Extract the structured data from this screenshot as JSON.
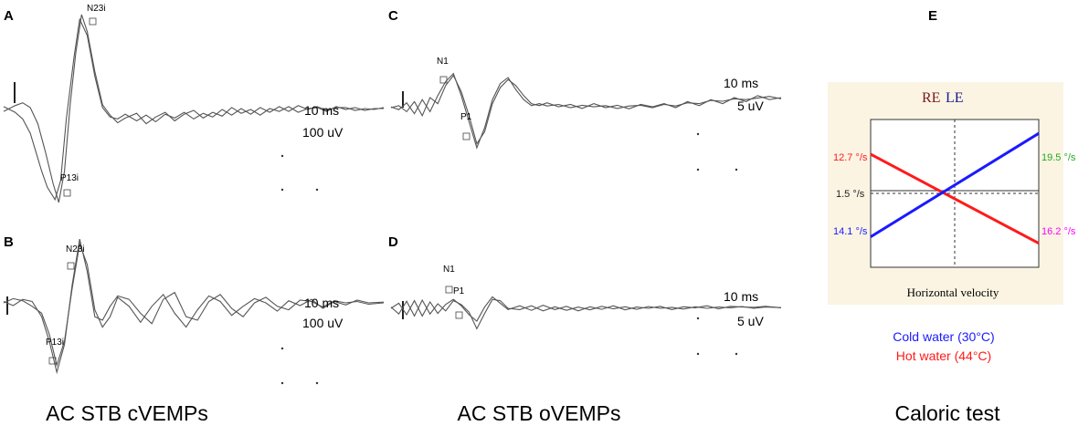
{
  "chart_data": [
    {
      "type": "line",
      "panel": "A",
      "markers": [
        {
          "name": "N23i",
          "kind": "peak"
        },
        {
          "name": "P13i",
          "kind": "trough"
        }
      ],
      "scale": {
        "time": "10 ms",
        "amplitude": "100 uV"
      },
      "series": [
        {
          "t": [
            0,
            6,
            10,
            14,
            17,
            20,
            23,
            27,
            30,
            33,
            37,
            40,
            44,
            48,
            52,
            56,
            60,
            64,
            70,
            75,
            80,
            85,
            90,
            95,
            100,
            105,
            110,
            115,
            120,
            125,
            130,
            135,
            140,
            145,
            150,
            155,
            160,
            165,
            170,
            175,
            180,
            185,
            190,
            195,
            200
          ],
          "v": [
            0.03,
            -0.03,
            -0.1,
            -0.25,
            -0.45,
            -0.65,
            -0.82,
            -0.95,
            -0.75,
            -0.1,
            0.55,
            0.95,
            0.78,
            0.35,
            0.02,
            -0.08,
            -0.1,
            -0.05,
            -0.12,
            -0.06,
            -0.13,
            -0.05,
            -0.09,
            -0.03,
            -0.1,
            -0.04,
            -0.08,
            0.0,
            -0.06,
            0.01,
            -0.05,
            0.02,
            -0.03,
            0.03,
            -0.02,
            0.04,
            0.0,
            0.03,
            -0.01,
            0.02,
            0.02,
            -0.01,
            0.01,
            0.0,
            0.02
          ]
        },
        {
          "t": [
            0,
            6,
            10,
            14,
            18,
            22,
            26,
            29,
            32,
            35,
            38,
            41,
            44,
            48,
            52,
            56,
            60,
            64,
            70,
            75,
            80,
            85,
            90,
            95,
            100,
            105,
            110,
            115,
            120,
            125,
            130,
            135,
            140,
            145,
            150,
            155,
            160,
            165,
            170,
            175,
            180,
            185,
            190,
            195,
            200
          ],
          "v": [
            -0.02,
            0.04,
            0.07,
            0.02,
            -0.15,
            -0.45,
            -0.78,
            -0.98,
            -0.65,
            0.05,
            0.6,
            1.0,
            0.82,
            0.4,
            0.05,
            -0.06,
            -0.14,
            -0.09,
            -0.04,
            -0.15,
            -0.08,
            -0.03,
            -0.12,
            -0.05,
            -0.01,
            -0.09,
            -0.03,
            -0.07,
            0.02,
            -0.04,
            0.0,
            -0.06,
            0.01,
            -0.02,
            0.03,
            -0.03,
            0.01,
            0.02,
            -0.02,
            0.03,
            0.0,
            0.02,
            -0.01,
            0.01,
            0.01
          ]
        }
      ]
    },
    {
      "type": "line",
      "panel": "B",
      "markers": [
        {
          "name": "N23i",
          "kind": "peak"
        },
        {
          "name": "P13i",
          "kind": "trough"
        }
      ],
      "scale": {
        "time": "10 ms",
        "amplitude": "100 uV"
      },
      "series": [
        {
          "t": [
            0,
            5,
            10,
            15,
            20,
            24,
            28,
            32,
            36,
            40,
            44,
            48,
            52,
            56,
            60,
            66,
            72,
            78,
            84,
            90,
            96,
            102,
            108,
            114,
            120,
            126,
            132,
            138,
            144,
            150,
            156,
            162,
            168,
            174,
            180,
            186,
            192,
            200
          ],
          "v": [
            0.0,
            0.06,
            0.03,
            -0.05,
            -0.15,
            -0.45,
            -0.9,
            -0.55,
            0.2,
            0.85,
            0.55,
            -0.1,
            -0.35,
            -0.2,
            0.08,
            -0.05,
            -0.28,
            -0.05,
            0.12,
            -0.15,
            -0.35,
            -0.1,
            0.1,
            0.02,
            -0.18,
            -0.05,
            0.06,
            0.0,
            -0.12,
            0.03,
            -0.04,
            0.05,
            -0.08,
            0.02,
            -0.03,
            0.04,
            0.0,
            0.01
          ]
        },
        {
          "t": [
            0,
            5,
            10,
            15,
            20,
            24,
            28,
            32,
            36,
            40,
            44,
            48,
            52,
            56,
            60,
            66,
            72,
            78,
            84,
            90,
            96,
            102,
            108,
            114,
            120,
            126,
            132,
            138,
            144,
            150,
            156,
            162,
            168,
            174,
            180,
            186,
            192,
            200
          ],
          "v": [
            0.02,
            -0.04,
            0.05,
            0.02,
            -0.2,
            -0.55,
            -1.0,
            -0.6,
            0.25,
            0.92,
            0.45,
            -0.2,
            -0.25,
            -0.05,
            0.1,
            0.05,
            -0.15,
            -0.3,
            0.05,
            0.15,
            -0.2,
            -0.25,
            0.02,
            0.12,
            -0.08,
            -0.2,
            0.0,
            0.08,
            -0.05,
            -0.1,
            0.04,
            0.02,
            -0.06,
            0.03,
            0.0,
            0.02,
            -0.02,
            0.0
          ]
        }
      ]
    },
    {
      "type": "line",
      "panel": "C",
      "markers": [
        {
          "name": "N1",
          "kind": "peak"
        },
        {
          "name": "P1",
          "kind": "trough"
        }
      ],
      "scale": {
        "time": "10 ms",
        "amplitude": "5 uV"
      },
      "series": [
        {
          "t": [
            0,
            4,
            8,
            12,
            16,
            20,
            24,
            28,
            32,
            36,
            40,
            44,
            48,
            52,
            56,
            60,
            64,
            68,
            72,
            76,
            80,
            86,
            92,
            98,
            104,
            110,
            116,
            122,
            128,
            134,
            140,
            146,
            152,
            158,
            164,
            170,
            176,
            182,
            188,
            194,
            200
          ],
          "v": [
            0.0,
            0.05,
            -0.1,
            0.15,
            -0.2,
            0.25,
            0.1,
            0.55,
            0.8,
            0.4,
            -0.2,
            -0.9,
            -0.6,
            0.1,
            0.5,
            0.7,
            0.55,
            0.3,
            0.1,
            0.05,
            0.12,
            0.02,
            0.08,
            -0.02,
            0.1,
            0.0,
            0.06,
            -0.03,
            0.08,
            0.02,
            0.1,
            0.0,
            0.15,
            0.05,
            0.2,
            0.1,
            0.25,
            0.15,
            0.3,
            0.2,
            0.25
          ]
        },
        {
          "t": [
            0,
            4,
            8,
            12,
            16,
            20,
            24,
            28,
            32,
            36,
            40,
            44,
            48,
            52,
            56,
            60,
            64,
            68,
            72,
            76,
            80,
            86,
            92,
            98,
            104,
            110,
            116,
            122,
            128,
            134,
            140,
            146,
            152,
            158,
            164,
            170,
            176,
            182,
            188,
            194,
            200
          ],
          "v": [
            0.02,
            -0.05,
            0.12,
            -0.15,
            0.2,
            -0.1,
            0.3,
            0.65,
            0.85,
            0.3,
            -0.35,
            -1.0,
            -0.5,
            0.2,
            0.6,
            0.75,
            0.45,
            0.2,
            0.05,
            0.1,
            0.04,
            0.08,
            0.0,
            0.06,
            0.02,
            0.05,
            -0.02,
            0.04,
            0.06,
            0.0,
            0.08,
            0.04,
            0.12,
            0.1,
            0.18,
            0.16,
            0.22,
            0.2,
            0.24,
            0.28,
            0.22
          ]
        }
      ]
    },
    {
      "type": "line",
      "panel": "D",
      "markers": [
        {
          "name": "N1",
          "kind": "peak"
        },
        {
          "name": "P1",
          "kind": "trough"
        }
      ],
      "scale": {
        "time": "10 ms",
        "amplitude": "5 uV"
      },
      "series": [
        {
          "t": [
            0,
            4,
            8,
            12,
            16,
            20,
            24,
            28,
            32,
            36,
            40,
            44,
            48,
            52,
            56,
            60,
            66,
            72,
            78,
            84,
            90,
            96,
            102,
            108,
            114,
            120,
            126,
            132,
            138,
            144,
            150,
            156,
            162,
            168,
            174,
            180,
            186,
            192,
            200
          ],
          "v": [
            0.0,
            0.2,
            -0.25,
            0.3,
            -0.3,
            0.25,
            -0.2,
            0.15,
            0.35,
            0.1,
            -0.25,
            -0.5,
            0.05,
            0.45,
            0.2,
            -0.05,
            0.1,
            -0.08,
            0.12,
            -0.05,
            0.08,
            -0.1,
            0.06,
            -0.04,
            0.1,
            -0.06,
            0.05,
            0.0,
            0.08,
            -0.05,
            0.06,
            0.02,
            0.1,
            -0.02,
            0.08,
            0.05,
            0.04,
            0.08,
            0.02
          ]
        },
        {
          "t": [
            0,
            4,
            8,
            12,
            16,
            20,
            24,
            28,
            32,
            36,
            40,
            44,
            48,
            52,
            56,
            60,
            66,
            72,
            78,
            84,
            90,
            96,
            102,
            108,
            114,
            120,
            126,
            132,
            138,
            144,
            150,
            156,
            162,
            168,
            174,
            180,
            186,
            192,
            200
          ],
          "v": [
            0.05,
            -0.22,
            0.28,
            -0.3,
            0.32,
            -0.22,
            0.18,
            -0.1,
            0.3,
            0.15,
            -0.15,
            -0.8,
            -0.2,
            0.35,
            0.3,
            0.0,
            -0.05,
            0.1,
            -0.1,
            0.06,
            -0.08,
            0.05,
            -0.06,
            0.08,
            -0.02,
            0.06,
            -0.04,
            0.07,
            0.0,
            0.04,
            -0.03,
            0.06,
            0.0,
            0.05,
            0.02,
            0.07,
            0.0,
            0.05,
            0.03
          ]
        }
      ]
    },
    {
      "type": "line",
      "panel": "E",
      "title_left": "RE",
      "title_right": "LE",
      "xlabel": "Horizontal velocity",
      "center_label": "1.5 °/s",
      "series": [
        {
          "name": "Hot water (44°C)",
          "color": "#ff1a1a",
          "x": [
            0,
            1
          ],
          "y": [
            12.7,
            -16.2
          ]
        },
        {
          "name": "Cold water (30°C)",
          "color": "#1a1aff",
          "x": [
            0,
            1
          ],
          "y": [
            -14.1,
            19.5
          ]
        }
      ],
      "value_labels": {
        "left_top": {
          "text": "12.7 °/s",
          "color": "#ff1a1a"
        },
        "left_bottom": {
          "text": "14.1 °/s",
          "color": "#1a1aff"
        },
        "right_top": {
          "text": "19.5 °/s",
          "color": "#22aa22"
        },
        "right_bottom": {
          "text": "16.2 °/s",
          "color": "#ff00ff"
        }
      },
      "legend": [
        {
          "text": "Cold water (30°C)",
          "color": "#1a1aff"
        },
        {
          "text": "Hot water (44°C)",
          "color": "#ff1a1a"
        }
      ]
    }
  ],
  "captions": {
    "left": "AC STB cVEMPs",
    "middle": "AC STB oVEMPs",
    "right": "Caloric test"
  },
  "colors": {
    "caloric_background": "#fbf4e3",
    "trace": "#555555"
  }
}
